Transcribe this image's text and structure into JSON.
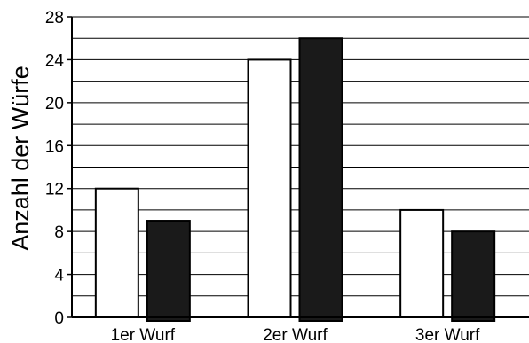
{
  "chart_data": {
    "type": "bar",
    "title": "",
    "xlabel": "",
    "ylabel": "Anzahl der Würfe",
    "categories": [
      "1er Wurf",
      "2er Wurf",
      "3er Wurf"
    ],
    "series": [
      {
        "values": [
          12,
          24,
          10
        ],
        "color": "#ffffff"
      },
      {
        "values": [
          9,
          26,
          8
        ],
        "color": "#1a1a1a"
      }
    ],
    "ylim": [
      0,
      28
    ],
    "yticks": [
      0,
      4,
      8,
      12,
      16,
      20,
      24,
      28
    ],
    "grid": true,
    "legend": "none",
    "colors": {
      "bar_outline": "#000000",
      "grid": "#000000",
      "background": "#ffffff"
    }
  }
}
